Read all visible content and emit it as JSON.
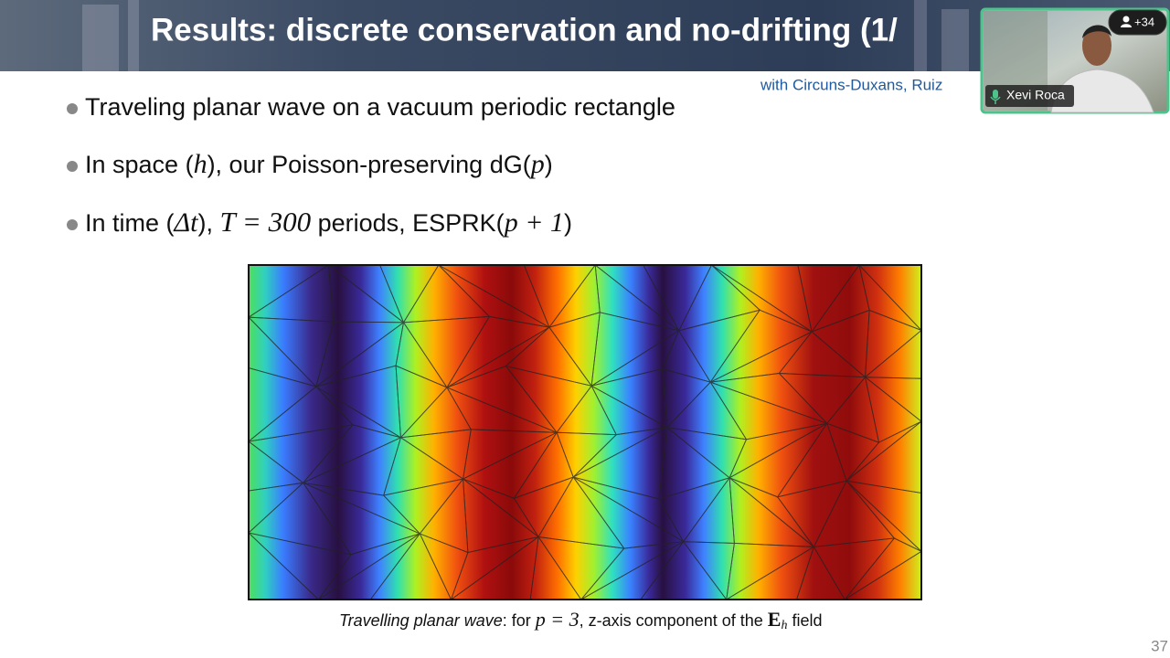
{
  "header": {
    "title": "Results: discrete conservation and no-drifting (1/",
    "credit": "with Circuns-Duxans, Ruiz"
  },
  "bullets": [
    [
      "Traveling planar wave on a vacuum periodic rectangle"
    ],
    [
      "In space (",
      "h",
      "), our Poisson-preserving dG(",
      "p",
      ")"
    ],
    [
      "In time (",
      "Δt",
      "), ",
      "T = 300",
      " periods, ESPRK(",
      "p + 1",
      ")"
    ]
  ],
  "figure": {
    "caption": [
      "Travelling planar wave",
      ": for ",
      "p = 3",
      ", z-axis component of the ",
      "E",
      "h",
      " field"
    ]
  },
  "page_number": "37",
  "video": {
    "participant": "Xevi Roca",
    "others": "+34"
  }
}
